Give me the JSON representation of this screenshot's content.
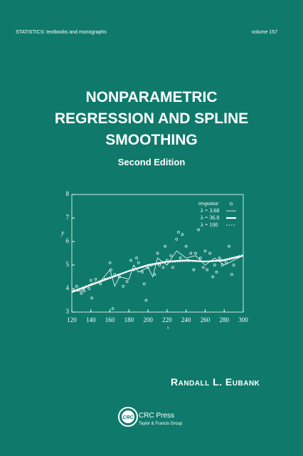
{
  "series_line": "STATISTICS:  textbooks and monographs",
  "volume": "volume 157",
  "title": [
    "NONPARAMETRIC",
    "REGRESSION AND SPLINE",
    "SMOOTHING"
  ],
  "edition": "Second Edition",
  "author": "Randall L. Eubank",
  "publisher": {
    "name": "CRC Press",
    "group": "Taylor & Francis Group"
  },
  "chart_data": {
    "type": "scatter",
    "ylabel": "y",
    "xlabel": "x",
    "xlim": [
      120,
      300
    ],
    "ylim": [
      3,
      8
    ],
    "xticks": [
      120,
      140,
      160,
      180,
      200,
      220,
      240,
      260,
      280,
      300
    ],
    "yticks": [
      3,
      4,
      5,
      6,
      7,
      8
    ],
    "color": "#ffffff",
    "series": [
      {
        "name": "response",
        "type": "scatter",
        "x": [
          122,
          125,
          130,
          133,
          138,
          140,
          141,
          145,
          150,
          155,
          160,
          161,
          163,
          165,
          170,
          174,
          178,
          182,
          185,
          188,
          190,
          194,
          196,
          198,
          200,
          203,
          207,
          210,
          212,
          216,
          218,
          220,
          224,
          226,
          230,
          232,
          234,
          236,
          240,
          242,
          245,
          248,
          250,
          253,
          255,
          258,
          260,
          262,
          265,
          268,
          270,
          272,
          275,
          278,
          282,
          285,
          288,
          290
        ],
        "values": [
          3.9,
          4.1,
          3.8,
          3.9,
          4.0,
          4.35,
          3.6,
          4.4,
          4.2,
          4.4,
          5.1,
          4.8,
          3.15,
          4.6,
          4.5,
          4.1,
          4.3,
          5.2,
          4.8,
          5.3,
          5.1,
          4.7,
          4.2,
          3.5,
          4.9,
          5.0,
          4.6,
          5.5,
          5.0,
          4.9,
          5.8,
          5.2,
          5.4,
          4.9,
          6.1,
          6.4,
          5.3,
          6.3,
          5.8,
          5.2,
          5.5,
          4.8,
          5.5,
          6.5,
          5.3,
          4.9,
          5.6,
          4.8,
          5.5,
          4.5,
          5.0,
          4.7,
          5.3,
          5.0,
          5.1,
          5.8,
          4.6,
          5.0
        ]
      },
      {
        "name": "λ = 3.68",
        "type": "line",
        "style": "thin",
        "x": [
          120,
          130,
          140,
          150,
          160,
          165,
          170,
          180,
          185,
          190,
          200,
          205,
          210,
          220,
          230,
          240,
          250,
          260,
          270,
          280,
          290,
          300
        ],
        "values": [
          3.9,
          3.9,
          4.2,
          4.3,
          4.8,
          4.1,
          4.5,
          4.4,
          5.0,
          4.7,
          4.9,
          4.5,
          5.3,
          5.0,
          5.6,
          5.3,
          5.4,
          5.0,
          5.3,
          5.0,
          5.2,
          5.4
        ]
      },
      {
        "name": "λ = 36.8",
        "type": "line",
        "style": "thick",
        "x": [
          120,
          140,
          160,
          180,
          200,
          220,
          240,
          260,
          280,
          300
        ],
        "values": [
          3.85,
          4.15,
          4.45,
          4.75,
          5.0,
          5.15,
          5.2,
          5.15,
          5.2,
          5.4
        ]
      },
      {
        "name": "λ = 100",
        "type": "line",
        "style": "dotted",
        "x": [
          120,
          140,
          160,
          180,
          200,
          220,
          240,
          260,
          280,
          300
        ],
        "values": [
          3.9,
          4.2,
          4.5,
          4.75,
          4.95,
          5.1,
          5.15,
          5.15,
          5.25,
          5.45
        ]
      }
    ]
  }
}
